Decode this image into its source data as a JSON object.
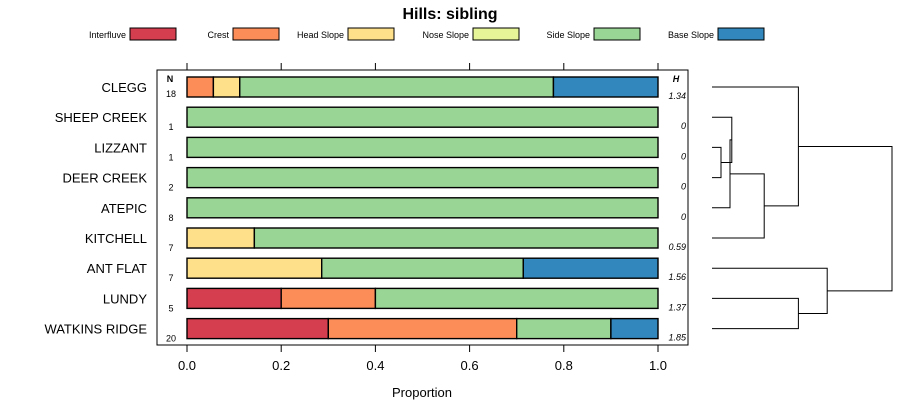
{
  "chart_data": {
    "type": "bar",
    "orientation": "horizontal",
    "stacked": true,
    "title": "Hills: sibling",
    "xlabel": "Proportion",
    "xlim": [
      0,
      1
    ],
    "xticks": [
      "0.0",
      "0.2",
      "0.4",
      "0.6",
      "0.8",
      "1.0"
    ],
    "n_header": "N",
    "h_header": "H",
    "legend_position": "top",
    "series": [
      {
        "name": "Interfluve",
        "color": "#d53e4f"
      },
      {
        "name": "Crest",
        "color": "#fc8d59"
      },
      {
        "name": "Head Slope",
        "color": "#fee08b"
      },
      {
        "name": "Nose Slope",
        "color": "#e6f598"
      },
      {
        "name": "Side Slope",
        "color": "#99d594"
      },
      {
        "name": "Base Slope",
        "color": "#3288bd"
      }
    ],
    "categories": [
      {
        "name": "CLEGG",
        "n": "18",
        "h": "1.34",
        "values": [
          0,
          0.056,
          0.056,
          0,
          0.666,
          0.222
        ]
      },
      {
        "name": "SHEEP CREEK",
        "n": "1",
        "h": "0",
        "values": [
          0,
          0,
          0,
          0,
          1.0,
          0
        ]
      },
      {
        "name": "LIZZANT",
        "n": "1",
        "h": "0",
        "values": [
          0,
          0,
          0,
          0,
          1.0,
          0
        ]
      },
      {
        "name": "DEER CREEK",
        "n": "2",
        "h": "0",
        "values": [
          0,
          0,
          0,
          0,
          1.0,
          0
        ]
      },
      {
        "name": "ATEPIC",
        "n": "8",
        "h": "0",
        "values": [
          0,
          0,
          0,
          0,
          1.0,
          0
        ]
      },
      {
        "name": "KITCHELL",
        "n": "7",
        "h": "0.59",
        "values": [
          0,
          0,
          0.143,
          0,
          0.857,
          0
        ]
      },
      {
        "name": "ANT FLAT",
        "n": "7",
        "h": "1.56",
        "values": [
          0,
          0,
          0.286,
          0,
          0.428,
          0.286
        ]
      },
      {
        "name": "LUNDY",
        "n": "5",
        "h": "1.37",
        "values": [
          0.2,
          0.2,
          0,
          0,
          0.6,
          0
        ]
      },
      {
        "name": "WATKINS RIDGE",
        "n": "20",
        "h": "1.85",
        "values": [
          0.3,
          0.4,
          0,
          0,
          0.2,
          0.1
        ]
      }
    ],
    "dendrogram": {
      "leaf_order": [
        "CLEGG",
        "SHEEP CREEK",
        "LIZZANT",
        "DEER CREEK",
        "ATEPIC",
        "KITCHELL",
        "ANT FLAT",
        "LUNDY",
        "WATKINS RIDGE"
      ],
      "merges": [
        {
          "a": "LIZZANT",
          "b": "DEER CREEK",
          "height": 0.05
        },
        {
          "a": "SHEEP CREEK",
          "b": "LIZZANT+DEER CREEK",
          "height": 0.11
        },
        {
          "a": "SHEEP CREEK+LIZZANT+DEER CREEK",
          "b": "ATEPIC",
          "height": 0.1
        },
        {
          "a": "SHEEP..ATEPIC",
          "b": "KITCHELL",
          "height": 0.29
        },
        {
          "a": "CLEGG",
          "b": "SHEEP..KITCHELL",
          "height": 0.48
        },
        {
          "a": "LUNDY",
          "b": "WATKINS RIDGE",
          "height": 0.48
        },
        {
          "a": "ANT FLAT",
          "b": "LUNDY+WATKINS RIDGE",
          "height": 0.64
        },
        {
          "a": "CLEGG..KITCHELL",
          "b": "ANT FLAT..WATKINS RIDGE",
          "height": 1.0
        }
      ]
    }
  }
}
